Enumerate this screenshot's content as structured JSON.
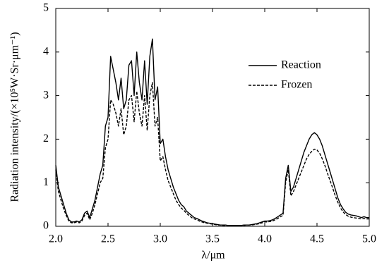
{
  "chart_data": {
    "type": "line",
    "xlabel": "λ/μm",
    "ylabel": "Radiation intensity/(×10⁵W·Sr·μm⁻¹)",
    "x": [
      2,
      2.025,
      2.05,
      2.075,
      2.1,
      2.125,
      2.15,
      2.175,
      2.2,
      2.225,
      2.25,
      2.275,
      2.3,
      2.325,
      2.35,
      2.375,
      2.4,
      2.425,
      2.45,
      2.475,
      2.5,
      2.525,
      2.55,
      2.575,
      2.6,
      2.625,
      2.65,
      2.675,
      2.7,
      2.725,
      2.75,
      2.775,
      2.8,
      2.825,
      2.85,
      2.875,
      2.9,
      2.925,
      2.95,
      2.975,
      3,
      3.025,
      3.05,
      3.075,
      3.1,
      3.125,
      3.15,
      3.175,
      3.2,
      3.225,
      3.25,
      3.275,
      3.3,
      3.325,
      3.35,
      3.375,
      3.4,
      3.425,
      3.45,
      3.475,
      3.5,
      3.525,
      3.55,
      3.575,
      3.6,
      3.625,
      3.65,
      3.675,
      3.7,
      3.725,
      3.75,
      3.775,
      3.8,
      3.825,
      3.85,
      3.875,
      3.9,
      3.925,
      3.95,
      3.975,
      4,
      4.025,
      4.05,
      4.075,
      4.1,
      4.125,
      4.15,
      4.175,
      4.2,
      4.225,
      4.25,
      4.275,
      4.3,
      4.325,
      4.35,
      4.375,
      4.4,
      4.425,
      4.45,
      4.475,
      4.5,
      4.525,
      4.55,
      4.575,
      4.6,
      4.625,
      4.65,
      4.675,
      4.7,
      4.725,
      4.75,
      4.775,
      4.8,
      4.825,
      4.85,
      4.875,
      4.9,
      4.925,
      4.95,
      4.975,
      5
    ],
    "series": [
      {
        "name": "Reaction",
        "color": "#000000",
        "dash": "solid",
        "values": [
          1.4,
          0.9,
          0.7,
          0.5,
          0.3,
          0.15,
          0.1,
          0.1,
          0.12,
          0.1,
          0.15,
          0.3,
          0.35,
          0.2,
          0.4,
          0.6,
          0.9,
          1.2,
          1.4,
          2.3,
          2.5,
          3.9,
          3.6,
          3.3,
          2.9,
          3.4,
          2.7,
          2.9,
          3.7,
          3.8,
          3.0,
          4.0,
          3.3,
          2.9,
          3.8,
          2.8,
          3.9,
          4.3,
          2.9,
          3.2,
          1.9,
          2.0,
          1.6,
          1.3,
          1.1,
          0.9,
          0.75,
          0.6,
          0.5,
          0.45,
          0.35,
          0.3,
          0.25,
          0.2,
          0.18,
          0.15,
          0.12,
          0.1,
          0.08,
          0.07,
          0.06,
          0.05,
          0.04,
          0.03,
          0.03,
          0.03,
          0.02,
          0.02,
          0.02,
          0.02,
          0.02,
          0.02,
          0.03,
          0.03,
          0.03,
          0.04,
          0.05,
          0.06,
          0.08,
          0.1,
          0.12,
          0.12,
          0.13,
          0.15,
          0.18,
          0.22,
          0.26,
          0.3,
          1.1,
          1.4,
          0.8,
          0.9,
          1.1,
          1.3,
          1.5,
          1.7,
          1.85,
          2.0,
          2.1,
          2.15,
          2.1,
          2.0,
          1.85,
          1.65,
          1.45,
          1.25,
          1.05,
          0.85,
          0.65,
          0.5,
          0.4,
          0.32,
          0.28,
          0.26,
          0.25,
          0.24,
          0.22,
          0.2,
          0.22,
          0.2,
          0.2
        ]
      },
      {
        "name": "Frozen",
        "color": "#000000",
        "dash": "dashed",
        "values": [
          1.3,
          0.8,
          0.6,
          0.4,
          0.25,
          0.12,
          0.08,
          0.08,
          0.1,
          0.08,
          0.12,
          0.25,
          0.3,
          0.15,
          0.3,
          0.5,
          0.75,
          1.0,
          1.1,
          1.8,
          2.0,
          2.9,
          2.8,
          2.6,
          2.3,
          2.7,
          2.1,
          2.3,
          2.9,
          3.0,
          2.4,
          3.1,
          2.6,
          2.3,
          3.0,
          2.2,
          3.0,
          3.3,
          2.3,
          2.5,
          1.5,
          1.6,
          1.3,
          1.05,
          0.9,
          0.75,
          0.6,
          0.5,
          0.42,
          0.37,
          0.3,
          0.25,
          0.2,
          0.17,
          0.15,
          0.12,
          0.1,
          0.08,
          0.07,
          0.06,
          0.05,
          0.04,
          0.03,
          0.03,
          0.02,
          0.02,
          0.02,
          0.02,
          0.02,
          0.02,
          0.02,
          0.02,
          0.02,
          0.03,
          0.03,
          0.03,
          0.04,
          0.05,
          0.06,
          0.08,
          0.1,
          0.1,
          0.11,
          0.12,
          0.15,
          0.18,
          0.22,
          0.25,
          1.0,
          1.3,
          0.7,
          0.8,
          0.95,
          1.1,
          1.25,
          1.4,
          1.55,
          1.65,
          1.72,
          1.77,
          1.75,
          1.68,
          1.55,
          1.4,
          1.22,
          1.05,
          0.88,
          0.7,
          0.55,
          0.42,
          0.33,
          0.27,
          0.23,
          0.21,
          0.2,
          0.19,
          0.18,
          0.17,
          0.18,
          0.17,
          0.17
        ]
      }
    ],
    "xlim": [
      2,
      5
    ],
    "ylim": [
      0,
      5
    ],
    "xticks": [
      {
        "value": 2,
        "label": "2.0"
      },
      {
        "value": 2.5,
        "label": "2.5"
      },
      {
        "value": 3,
        "label": "3.0"
      },
      {
        "value": 3.5,
        "label": "3.5"
      },
      {
        "value": 4,
        "label": "4.0"
      },
      {
        "value": 4.5,
        "label": "4.5"
      },
      {
        "value": 5,
        "label": "5.0"
      }
    ],
    "yticks": [
      0,
      1,
      2,
      3,
      4,
      5
    ],
    "legend": "upper right"
  }
}
